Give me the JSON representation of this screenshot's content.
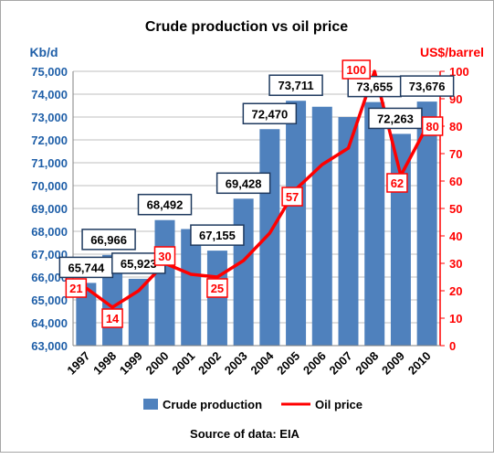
{
  "chart_data": {
    "type": "bar",
    "title": "Crude production vs oil price",
    "left_axis_unit": "Kb/d",
    "right_axis_unit": "US$/barrel",
    "source": "Source of data: EIA",
    "categories": [
      "1997",
      "1998",
      "1999",
      "2000",
      "2001",
      "2002",
      "2003",
      "2004",
      "2005",
      "2006",
      "2007",
      "2008",
      "2009",
      "2010"
    ],
    "y_left": {
      "min": 63000,
      "max": 75000,
      "step": 1000,
      "ticks": [
        "63,000",
        "64,000",
        "65,000",
        "66,000",
        "67,000",
        "68,000",
        "69,000",
        "70,000",
        "71,000",
        "72,000",
        "73,000",
        "74,000",
        "75,000"
      ]
    },
    "y_right": {
      "min": 0,
      "max": 100,
      "step": 10,
      "ticks": [
        "0",
        "10",
        "20",
        "30",
        "40",
        "50",
        "60",
        "70",
        "80",
        "90",
        "100"
      ]
    },
    "grid": true,
    "legend_position": "bottom",
    "series": [
      {
        "name": "Crude production",
        "type": "bar",
        "axis": "left",
        "color": "#4f81bd",
        "values": [
          65744,
          66966,
          65923,
          68492,
          68100,
          67155,
          69428,
          72470,
          73711,
          73450,
          73000,
          73655,
          72263,
          73676
        ]
      },
      {
        "name": "Oil price",
        "type": "line",
        "axis": "right",
        "color": "#ff0000",
        "values": [
          21,
          14,
          20,
          30,
          26,
          25,
          31,
          41,
          57,
          66,
          72,
          100,
          62,
          80
        ]
      }
    ],
    "bar_labels": [
      {
        "index": 0,
        "text": "65,744"
      },
      {
        "index": 1,
        "text": "66,966"
      },
      {
        "index": 2,
        "text": "65,923"
      },
      {
        "index": 3,
        "text": "68,492"
      },
      {
        "index": 5,
        "text": "67,155"
      },
      {
        "index": 6,
        "text": "69,428"
      },
      {
        "index": 7,
        "text": "72,470"
      },
      {
        "index": 8,
        "text": "73,711"
      },
      {
        "index": 11,
        "text": "73,655"
      },
      {
        "index": 12,
        "text": "72,263"
      },
      {
        "index": 13,
        "text": "73,676"
      }
    ],
    "price_labels": [
      {
        "index": 0,
        "text": "21"
      },
      {
        "index": 1,
        "text": "14"
      },
      {
        "index": 3,
        "text": "30"
      },
      {
        "index": 5,
        "text": "25"
      },
      {
        "index": 8,
        "text": "57"
      },
      {
        "index": 11,
        "text": "100"
      },
      {
        "index": 12,
        "text": "62"
      },
      {
        "index": 13,
        "text": "80"
      }
    ]
  }
}
